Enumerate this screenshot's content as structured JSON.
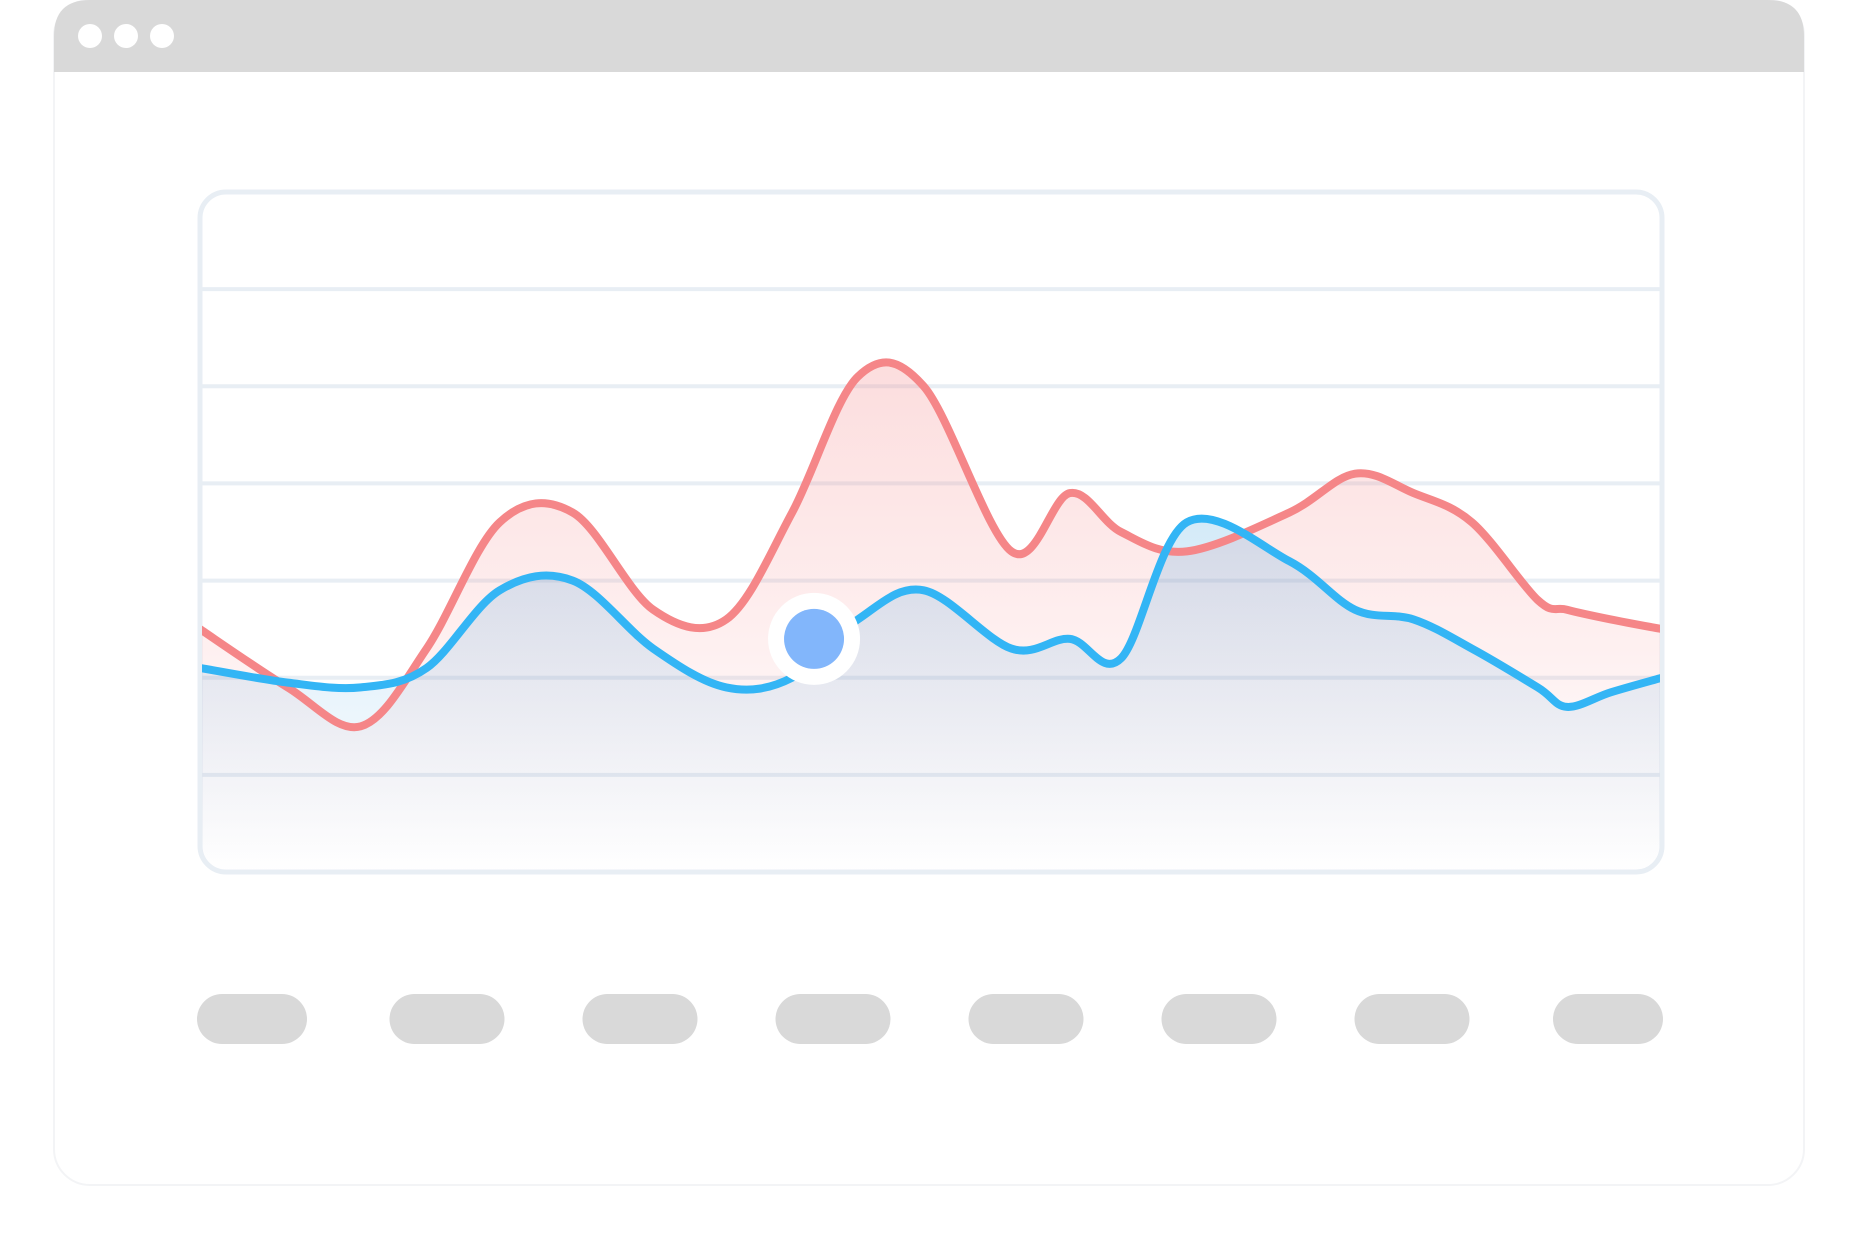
{
  "window": {
    "titlebar_color": "#d9d9d9",
    "frame_color": "#f3f4f6",
    "dots": [
      "window-dot",
      "window-dot",
      "window-dot"
    ]
  },
  "colors": {
    "red_series": "#f58688",
    "blue_series": "#33b5f5",
    "marker_fill": "#82b6fb",
    "grid": "#e8eef4",
    "axis_pill": "#d9d9d9"
  },
  "chart_data": {
    "type": "line",
    "title": "",
    "xlabel": "",
    "ylabel": "",
    "x_tick_labels": [
      "",
      "",
      "",
      "",
      "",
      "",
      "",
      ""
    ],
    "x": [
      0,
      0.06,
      0.11,
      0.155,
      0.205,
      0.255,
      0.31,
      0.36,
      0.405,
      0.45,
      0.495,
      0.555,
      0.595,
      0.63,
      0.675,
      0.745,
      0.79,
      0.83,
      0.87,
      0.915,
      0.935,
      0.965,
      1.0
    ],
    "xlim": [
      0,
      1
    ],
    "ylim": [
      0,
      7
    ],
    "grid": true,
    "legend": "none",
    "series": [
      {
        "color": "#f58688",
        "area": true,
        "values": [
          2.5,
          1.9,
          1.5,
          2.3,
          3.6,
          3.7,
          2.7,
          2.6,
          3.7,
          5.1,
          5.0,
          3.3,
          3.9,
          3.5,
          3.3,
          3.7,
          4.1,
          3.9,
          3.6,
          2.8,
          2.7,
          2.6,
          2.5
        ]
      },
      {
        "color": "#33b5f5",
        "area": true,
        "values": [
          2.1,
          1.95,
          1.9,
          2.1,
          2.9,
          3.0,
          2.3,
          1.9,
          2.0,
          2.6,
          2.9,
          2.3,
          2.4,
          2.2,
          3.6,
          3.2,
          2.7,
          2.6,
          2.3,
          1.9,
          1.7,
          1.85,
          2.0
        ]
      }
    ],
    "highlight": {
      "series_index": 1,
      "x": 0.42,
      "y": 2.4
    }
  }
}
